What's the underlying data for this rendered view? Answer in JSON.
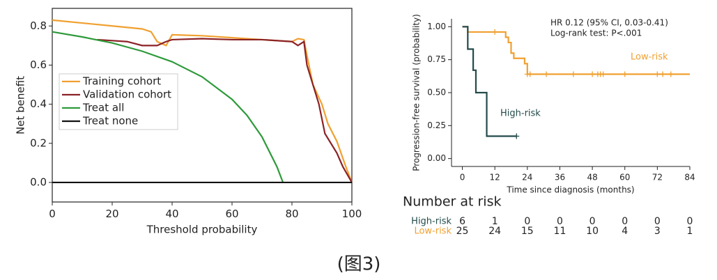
{
  "chart_data": [
    {
      "type": "line",
      "xlabel": "Threshold probability",
      "ylabel": "Net benefit",
      "xlim": [
        0,
        100
      ],
      "ylim": [
        -0.1,
        0.89
      ],
      "xticks": [
        0,
        20,
        40,
        60,
        80,
        100
      ],
      "yticks": [
        {
          "value": 0,
          "label": "0.0"
        },
        0.2,
        0.4,
        0.6,
        0.8
      ],
      "legend": "center left",
      "series": [
        {
          "name": "Training cohort",
          "color": "#f0a030",
          "x": [
            0,
            10,
            20,
            30,
            33,
            35,
            38,
            40,
            50,
            60,
            70,
            80,
            82,
            84,
            85,
            87,
            90,
            92,
            95,
            98,
            100
          ],
          "values": [
            0.83,
            0.815,
            0.8,
            0.785,
            0.77,
            0.72,
            0.7,
            0.755,
            0.75,
            0.74,
            0.73,
            0.72,
            0.735,
            0.73,
            0.65,
            0.5,
            0.4,
            0.3,
            0.21,
            0.08,
            0
          ]
        },
        {
          "name": "Validation cohort",
          "color": "#8b2226",
          "x": [
            15,
            20,
            25,
            30,
            35,
            38,
            40,
            50,
            60,
            70,
            80,
            82,
            84,
            85,
            87,
            89,
            91,
            93,
            95,
            97,
            100
          ],
          "values": [
            0.73,
            0.725,
            0.72,
            0.7,
            0.7,
            0.72,
            0.73,
            0.735,
            0.73,
            0.73,
            0.72,
            0.7,
            0.72,
            0.6,
            0.5,
            0.4,
            0.25,
            0.2,
            0.15,
            0.08,
            0
          ]
        },
        {
          "name": "Treat all",
          "color": "#2e9a3a",
          "x": [
            0,
            10,
            20,
            30,
            40,
            50,
            60,
            65,
            70,
            75,
            77
          ],
          "values": [
            0.77,
            0.744,
            0.713,
            0.671,
            0.617,
            0.54,
            0.425,
            0.343,
            0.233,
            0.08,
            0
          ]
        },
        {
          "name": "Treat none",
          "color": "#111111",
          "x": [
            0,
            100
          ],
          "values": [
            0,
            0
          ]
        }
      ]
    },
    {
      "type": "km",
      "xlabel": "Time since diagnosis (months)",
      "ylabel": "Progression-free survival (probability)",
      "xlim": [
        -4,
        84
      ],
      "ylim": [
        -0.06,
        1.06
      ],
      "xticks": [
        0,
        12,
        24,
        36,
        48,
        60,
        72,
        84
      ],
      "yticks": [
        {
          "value": 0,
          "label": "0.00"
        },
        {
          "value": 0.25,
          "label": "0.25"
        },
        {
          "value": 0.5,
          "label": "0.50"
        },
        {
          "value": 0.75,
          "label": "0.75"
        },
        {
          "value": 1,
          "label": "1.00"
        }
      ],
      "annotations": [
        "HR 0.12 (95% CI, 0.03-0.41)",
        "Log-rank test: P<.001"
      ],
      "series": [
        {
          "name": "Low-risk",
          "color": "#f0a030",
          "x": [
            0,
            2,
            16,
            17,
            18,
            19,
            23,
            24,
            84
          ],
          "values": [
            1,
            0.96,
            0.92,
            0.88,
            0.8,
            0.76,
            0.72,
            0.64,
            0.64
          ],
          "censored": [
            12,
            24,
            25,
            31,
            41,
            48,
            50,
            51,
            52,
            60,
            72,
            74,
            77
          ]
        },
        {
          "name": "High-risk",
          "color": "#244a4a",
          "x": [
            0,
            2,
            4,
            5,
            9,
            20
          ],
          "values": [
            1,
            0.83,
            0.67,
            0.5,
            0.17,
            0.17
          ],
          "censored": [
            20
          ]
        }
      ],
      "risk_table": {
        "title": "Number at risk",
        "rows": [
          {
            "name": "High-risk",
            "color": "#244a4a",
            "values": [
              6,
              1,
              0,
              0,
              0,
              0,
              0,
              0
            ]
          },
          {
            "name": "Low-risk",
            "color": "#f0a030",
            "values": [
              25,
              24,
              15,
              11,
              10,
              4,
              3,
              1
            ]
          }
        ]
      }
    }
  ],
  "caption": "(图3)"
}
